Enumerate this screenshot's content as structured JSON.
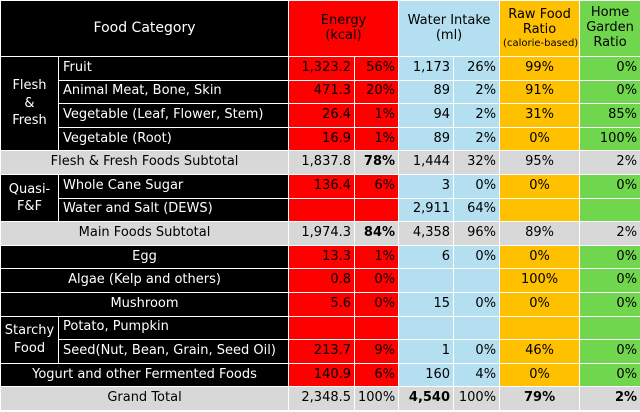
{
  "header": {
    "food_category": "Food Category",
    "energy_line1": "Energy",
    "energy_line2": "(kcal)",
    "water_line1": "Water Intake",
    "water_line2": "(ml)",
    "raw_line1": "Raw Food",
    "raw_line2": "Ratio",
    "raw_line3": "(calorie-based)",
    "home_line1": "Home",
    "home_line2": "Garden",
    "home_line3": "Ratio"
  },
  "groups": {
    "flesh_fresh": "Flesh & Fresh",
    "quasi": "Quasi-F&F",
    "starchy": "Starchy Food"
  },
  "rows": {
    "fruit": {
      "label": "Fruit",
      "energy": "1,323.2",
      "energy_pct": "56%",
      "water": "1,173",
      "water_pct": "26%",
      "raw": "99%",
      "home": "0%"
    },
    "meat": {
      "label": "Animal Meat, Bone, Skin",
      "energy": "471.3",
      "energy_pct": "20%",
      "water": "89",
      "water_pct": "2%",
      "raw": "91%",
      "home": "0%"
    },
    "veg_leaf": {
      "label": "Vegetable (Leaf, Flower, Stem)",
      "energy": "26.4",
      "energy_pct": "1%",
      "water": "94",
      "water_pct": "2%",
      "raw": "31%",
      "home": "85%"
    },
    "veg_root": {
      "label": "Vegetable (Root)",
      "energy": "16.9",
      "energy_pct": "1%",
      "water": "89",
      "water_pct": "2%",
      "raw": "0%",
      "home": "100%"
    },
    "flesh_subtotal": {
      "label": "Flesh & Fresh Foods Subtotal",
      "energy": "1,837.8",
      "energy_pct": "78%",
      "water": "1,444",
      "water_pct": "32%",
      "raw": "95%",
      "home": "2%"
    },
    "cane_sugar": {
      "label": "Whole Cane Sugar",
      "energy": "136.4",
      "energy_pct": "6%",
      "water": "3",
      "water_pct": "0%",
      "raw": "0%",
      "home": "0%"
    },
    "water_salt": {
      "label": "Water and Salt (DEWS)",
      "water": "2,911",
      "water_pct": "64%"
    },
    "main_subtotal": {
      "label": "Main Foods Subtotal",
      "energy": "1,974.3",
      "energy_pct": "84%",
      "water": "4,358",
      "water_pct": "96%",
      "raw": "89%",
      "home": "2%"
    },
    "egg": {
      "label": "Egg",
      "energy": "13.3",
      "energy_pct": "1%",
      "water": "6",
      "water_pct": "0%",
      "raw": "0%",
      "home": "0%"
    },
    "algae": {
      "label": "Algae (Kelp and others)",
      "energy": "0.8",
      "energy_pct": "0%",
      "raw": "100%",
      "home": "0%"
    },
    "mushroom": {
      "label": "Mushroom",
      "energy": "5.6",
      "energy_pct": "0%",
      "water": "15",
      "water_pct": "0%",
      "raw": "0%",
      "home": "0%"
    },
    "potato": {
      "label": "Potato, Pumpkin"
    },
    "seed": {
      "label": "Seed(Nut, Bean, Grain, Seed Oil)",
      "energy": "213.7",
      "energy_pct": "9%",
      "water": "1",
      "water_pct": "0%",
      "raw": "46%",
      "home": "0%"
    },
    "yogurt": {
      "label": "Yogurt and other Fermented Foods",
      "energy": "140.9",
      "energy_pct": "6%",
      "water": "160",
      "water_pct": "4%",
      "raw": "0%",
      "home": "0%"
    },
    "grand_total": {
      "label": "Grand Total",
      "energy": "2,348.5",
      "energy_pct": "100%",
      "water": "4,540",
      "water_pct": "100%",
      "raw": "79%",
      "home": "2%"
    }
  },
  "colors": {
    "energy": "#ff0000",
    "water": "#b4dff0",
    "raw": "#ffc000",
    "home": "#70d64e",
    "label_bg": "#000000",
    "subtotal_bg": "#d8d8d8"
  }
}
